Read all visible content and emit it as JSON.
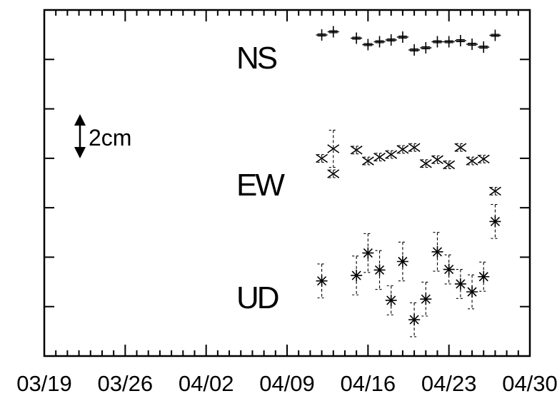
{
  "chart_data": {
    "type": "scatter",
    "title": "",
    "xlabel": "",
    "ylabel": "",
    "x_tick_labels": [
      "03/19",
      "03/26",
      "04/02",
      "04/09",
      "04/16",
      "04/23",
      "04/30"
    ],
    "x_range": [
      "03/19",
      "04/30"
    ],
    "x_minor_tick_interval_days": 1,
    "y_ticks": 6,
    "y_tick_labels_shown": false,
    "grid": false,
    "legend": "none",
    "scale_bar": {
      "label": "2cm",
      "value_cm": 2
    },
    "series": [
      {
        "name": "NS",
        "marker": "plus",
        "points": [
          {
            "x": "04/12",
            "y": 0.1,
            "err": 0.15
          },
          {
            "x": "04/13",
            "y": 0.55,
            "err": 0.15
          },
          {
            "x": "04/15",
            "y": -0.35,
            "err": 0.15
          },
          {
            "x": "04/16",
            "y": -1.25,
            "err": 0.15
          },
          {
            "x": "04/17",
            "y": -0.85,
            "err": 0.15
          },
          {
            "x": "04/18",
            "y": -0.6,
            "err": 0.15
          },
          {
            "x": "04/19",
            "y": -0.2,
            "err": 0.15
          },
          {
            "x": "04/20",
            "y": -2.0,
            "err": 0.15
          },
          {
            "x": "04/21",
            "y": -1.7,
            "err": 0.15
          },
          {
            "x": "04/22",
            "y": -0.85,
            "err": 0.15
          },
          {
            "x": "04/23",
            "y": -0.85,
            "err": 0.15
          },
          {
            "x": "04/24",
            "y": -0.7,
            "err": 0.15
          },
          {
            "x": "04/25",
            "y": -1.2,
            "err": 0.15
          },
          {
            "x": "04/26",
            "y": -1.6,
            "err": 0.15
          },
          {
            "x": "04/27",
            "y": 0.05,
            "err": 0.15
          }
        ]
      },
      {
        "name": "EW",
        "marker": "cross",
        "points": [
          {
            "x": "04/12",
            "y": 0.0,
            "err": 0.3
          },
          {
            "x": "04/13",
            "y": 0.75,
            "err": 1.45
          },
          {
            "x": "04/13",
            "y": -1.2,
            "err": 0.3
          },
          {
            "x": "04/15",
            "y": 0.65,
            "err": 0.3
          },
          {
            "x": "04/16",
            "y": -0.2,
            "err": 0.3
          },
          {
            "x": "04/17",
            "y": 0.1,
            "err": 0.3
          },
          {
            "x": "04/18",
            "y": 0.3,
            "err": 0.3
          },
          {
            "x": "04/19",
            "y": 0.7,
            "err": 0.3
          },
          {
            "x": "04/20",
            "y": 0.85,
            "err": 0.3
          },
          {
            "x": "04/21",
            "y": -0.4,
            "err": 0.3
          },
          {
            "x": "04/22",
            "y": -0.1,
            "err": 0.3
          },
          {
            "x": "04/23",
            "y": -0.5,
            "err": 0.3
          },
          {
            "x": "04/24",
            "y": 0.85,
            "err": 0.3
          },
          {
            "x": "04/25",
            "y": -0.2,
            "err": 0.3
          },
          {
            "x": "04/26",
            "y": -0.05,
            "err": 0.3
          },
          {
            "x": "04/27",
            "y": -2.55,
            "err": 0.3
          }
        ]
      },
      {
        "name": "UD",
        "marker": "asterisk",
        "points": [
          {
            "x": "04/12",
            "y": -0.1,
            "err": 1.4
          },
          {
            "x": "04/15",
            "y": 0.35,
            "err": 1.6
          },
          {
            "x": "04/16",
            "y": 2.2,
            "err": 1.6
          },
          {
            "x": "04/17",
            "y": 0.8,
            "err": 1.6
          },
          {
            "x": "04/18",
            "y": -1.7,
            "err": 1.2
          },
          {
            "x": "04/19",
            "y": 1.5,
            "err": 1.6
          },
          {
            "x": "04/20",
            "y": -3.3,
            "err": 1.4
          },
          {
            "x": "04/21",
            "y": -1.6,
            "err": 1.4
          },
          {
            "x": "04/22",
            "y": 2.3,
            "err": 1.6
          },
          {
            "x": "04/23",
            "y": 0.85,
            "err": 1.2
          },
          {
            "x": "04/24",
            "y": -0.35,
            "err": 1.2
          },
          {
            "x": "04/25",
            "y": -1.0,
            "err": 1.4
          },
          {
            "x": "04/26",
            "y": 0.25,
            "err": 1.2
          },
          {
            "x": "04/27",
            "y": 4.8,
            "err": 1.4
          }
        ]
      }
    ]
  }
}
